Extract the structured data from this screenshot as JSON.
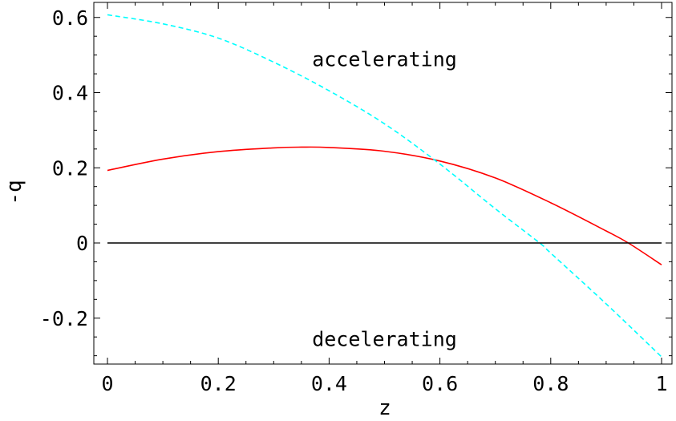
{
  "chart_data": {
    "type": "line",
    "title": "",
    "xlabel": "z",
    "ylabel": "-q",
    "xlim": [
      -0.025,
      1.0
    ],
    "ylim": [
      -0.325,
      0.63
    ],
    "x_ticks": [
      0,
      0.2,
      0.4,
      0.6,
      0.8,
      1
    ],
    "x_tick_labels": [
      "0",
      "0.2",
      "0.4",
      "0.6",
      "0.8",
      "1"
    ],
    "y_ticks": [
      -0.2,
      0,
      0.2,
      0.4,
      0.6
    ],
    "y_tick_labels": [
      "-0.2",
      "0",
      "0.2",
      "0.4",
      "0.6"
    ],
    "grid": false,
    "annotations": [
      {
        "text": "accelerating",
        "x": 0.5,
        "y": 0.49
      },
      {
        "text": "decelerating",
        "x": 0.5,
        "y": -0.255
      }
    ],
    "series": [
      {
        "color": "#ff0000",
        "style": "solid",
        "x": [
          0,
          0.1,
          0.2,
          0.3,
          0.35,
          0.4,
          0.5,
          0.6,
          0.7,
          0.8,
          0.9,
          0.94,
          1.0
        ],
        "y": [
          0.193,
          0.223,
          0.243,
          0.253,
          0.255,
          0.254,
          0.244,
          0.218,
          0.173,
          0.107,
          0.032,
          0.0,
          -0.058
        ]
      },
      {
        "color": "#00ffff",
        "style": "dashed",
        "x": [
          0,
          0.1,
          0.2,
          0.3,
          0.4,
          0.5,
          0.6,
          0.7,
          0.78,
          0.8,
          0.9,
          1.0
        ],
        "y": [
          0.607,
          0.583,
          0.545,
          0.481,
          0.405,
          0.317,
          0.21,
          0.091,
          0.0,
          -0.027,
          -0.162,
          -0.303
        ]
      },
      {
        "color": "#000000",
        "style": "solid",
        "x": [
          0,
          1
        ],
        "y": [
          0,
          0
        ]
      }
    ]
  }
}
